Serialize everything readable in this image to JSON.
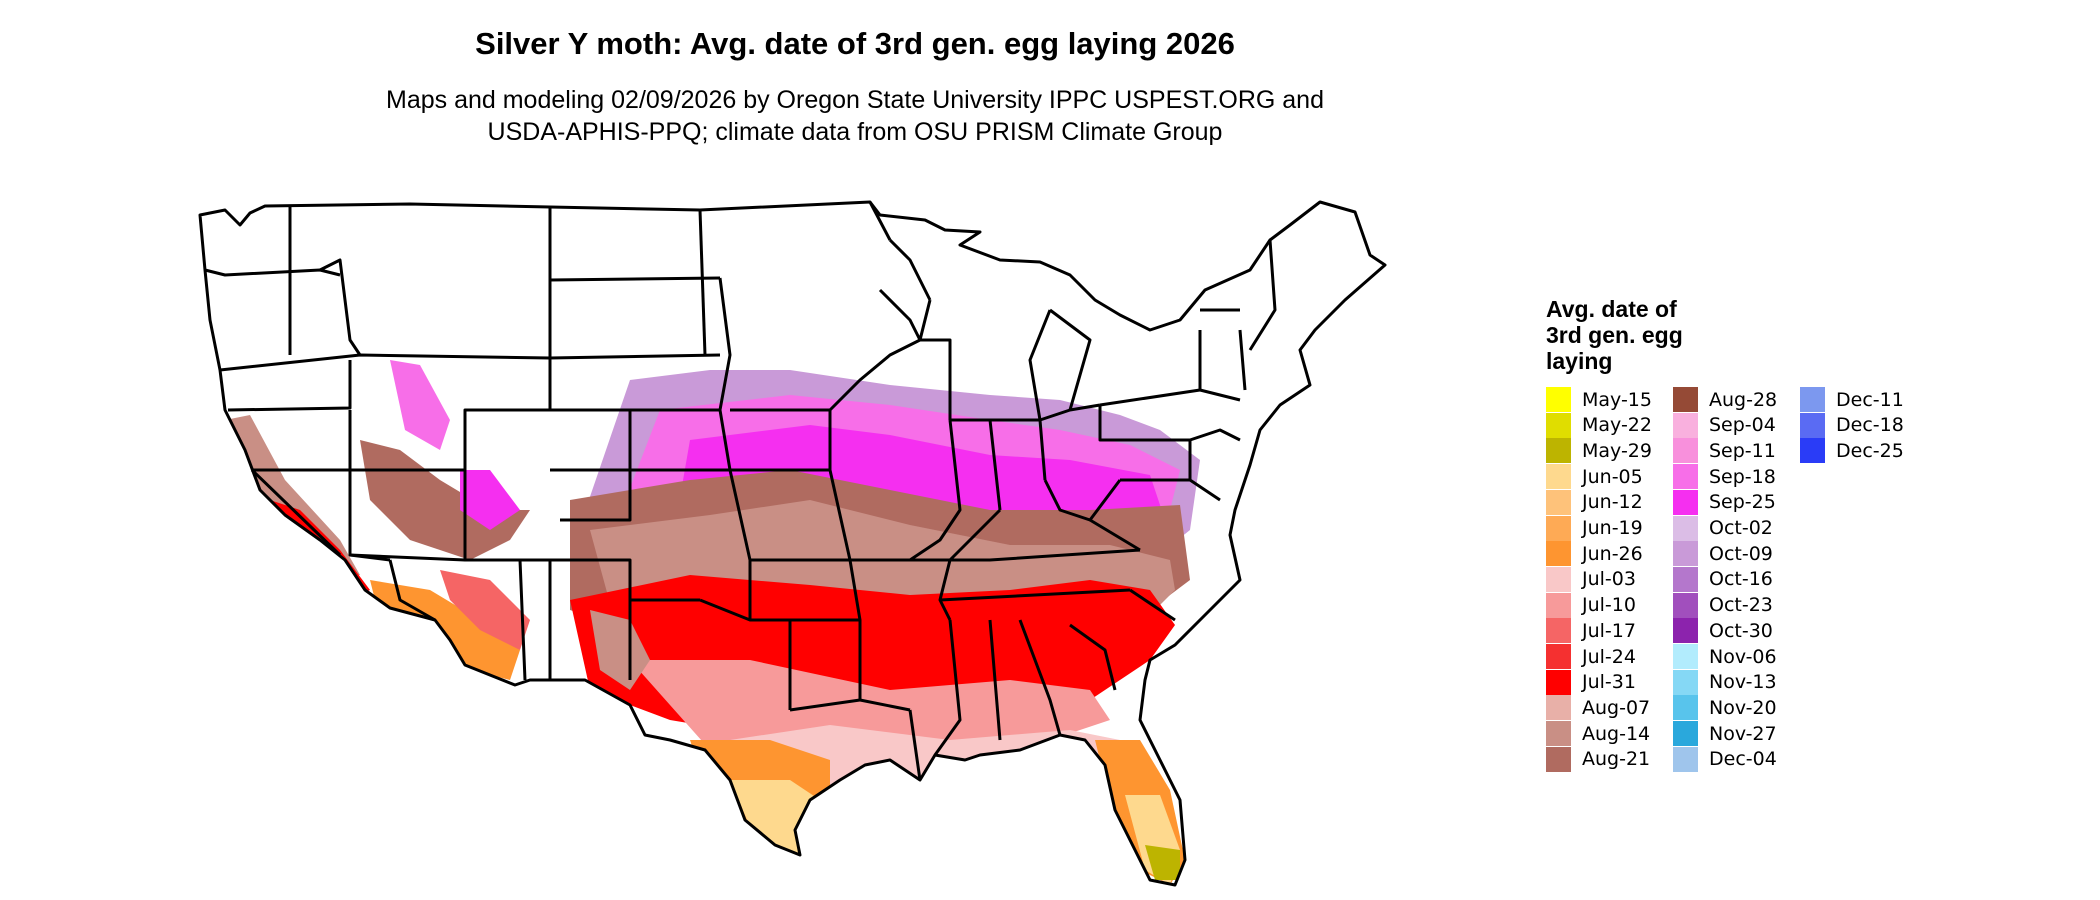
{
  "title": "Silver Y moth: Avg. date of 3rd gen. egg laying 2026",
  "subtitle_lines": [
    "Maps and modeling 02/09/2026 by Oregon State University IPPC USPEST.ORG and",
    "USDA-APHIS-PPQ; climate data from OSU PRISM Climate Group"
  ],
  "legend": {
    "title_lines": [
      "Avg. date of",
      "3rd gen. egg",
      "laying"
    ],
    "items": [
      {
        "label": "May-15",
        "color": "#ffff00"
      },
      {
        "label": "May-22",
        "color": "#e0dd00"
      },
      {
        "label": "May-29",
        "color": "#bdb400"
      },
      {
        "label": "Jun-05",
        "color": "#fed98e"
      },
      {
        "label": "Jun-12",
        "color": "#fec27a"
      },
      {
        "label": "Jun-19",
        "color": "#feaa55"
      },
      {
        "label": "Jun-26",
        "color": "#fe9530"
      },
      {
        "label": "Jul-03",
        "color": "#f9c8c8"
      },
      {
        "label": "Jul-10",
        "color": "#f79a9a"
      },
      {
        "label": "Jul-17",
        "color": "#f56565"
      },
      {
        "label": "Jul-24",
        "color": "#f53030"
      },
      {
        "label": "Jul-31",
        "color": "#ff0000"
      },
      {
        "label": "Aug-07",
        "color": "#e8b0a8"
      },
      {
        "label": "Aug-14",
        "color": "#c98f85"
      },
      {
        "label": "Aug-21",
        "color": "#b06b60"
      },
      {
        "label": "Aug-28",
        "color": "#954a36"
      },
      {
        "label": "Sep-04",
        "color": "#f9b0de"
      },
      {
        "label": "Sep-11",
        "color": "#f890dc"
      },
      {
        "label": "Sep-18",
        "color": "#f76ee8"
      },
      {
        "label": "Sep-25",
        "color": "#f52ff0"
      },
      {
        "label": "Oct-02",
        "color": "#dbbde6"
      },
      {
        "label": "Oct-09",
        "color": "#c99ad8"
      },
      {
        "label": "Oct-16",
        "color": "#b477cc"
      },
      {
        "label": "Oct-23",
        "color": "#a14fbd"
      },
      {
        "label": "Oct-30",
        "color": "#8c23ad"
      },
      {
        "label": "Nov-06",
        "color": "#b2ecfd"
      },
      {
        "label": "Nov-13",
        "color": "#85d8f5"
      },
      {
        "label": "Nov-20",
        "color": "#58c4ec"
      },
      {
        "label": "Nov-27",
        "color": "#2aa8dc"
      },
      {
        "label": "Dec-04",
        "color": "#9fc5ec"
      },
      {
        "label": "Dec-11",
        "color": "#7c98ef"
      },
      {
        "label": "Dec-18",
        "color": "#5a6bf3"
      },
      {
        "label": "Dec-25",
        "color": "#2a3cf7"
      }
    ]
  }
}
